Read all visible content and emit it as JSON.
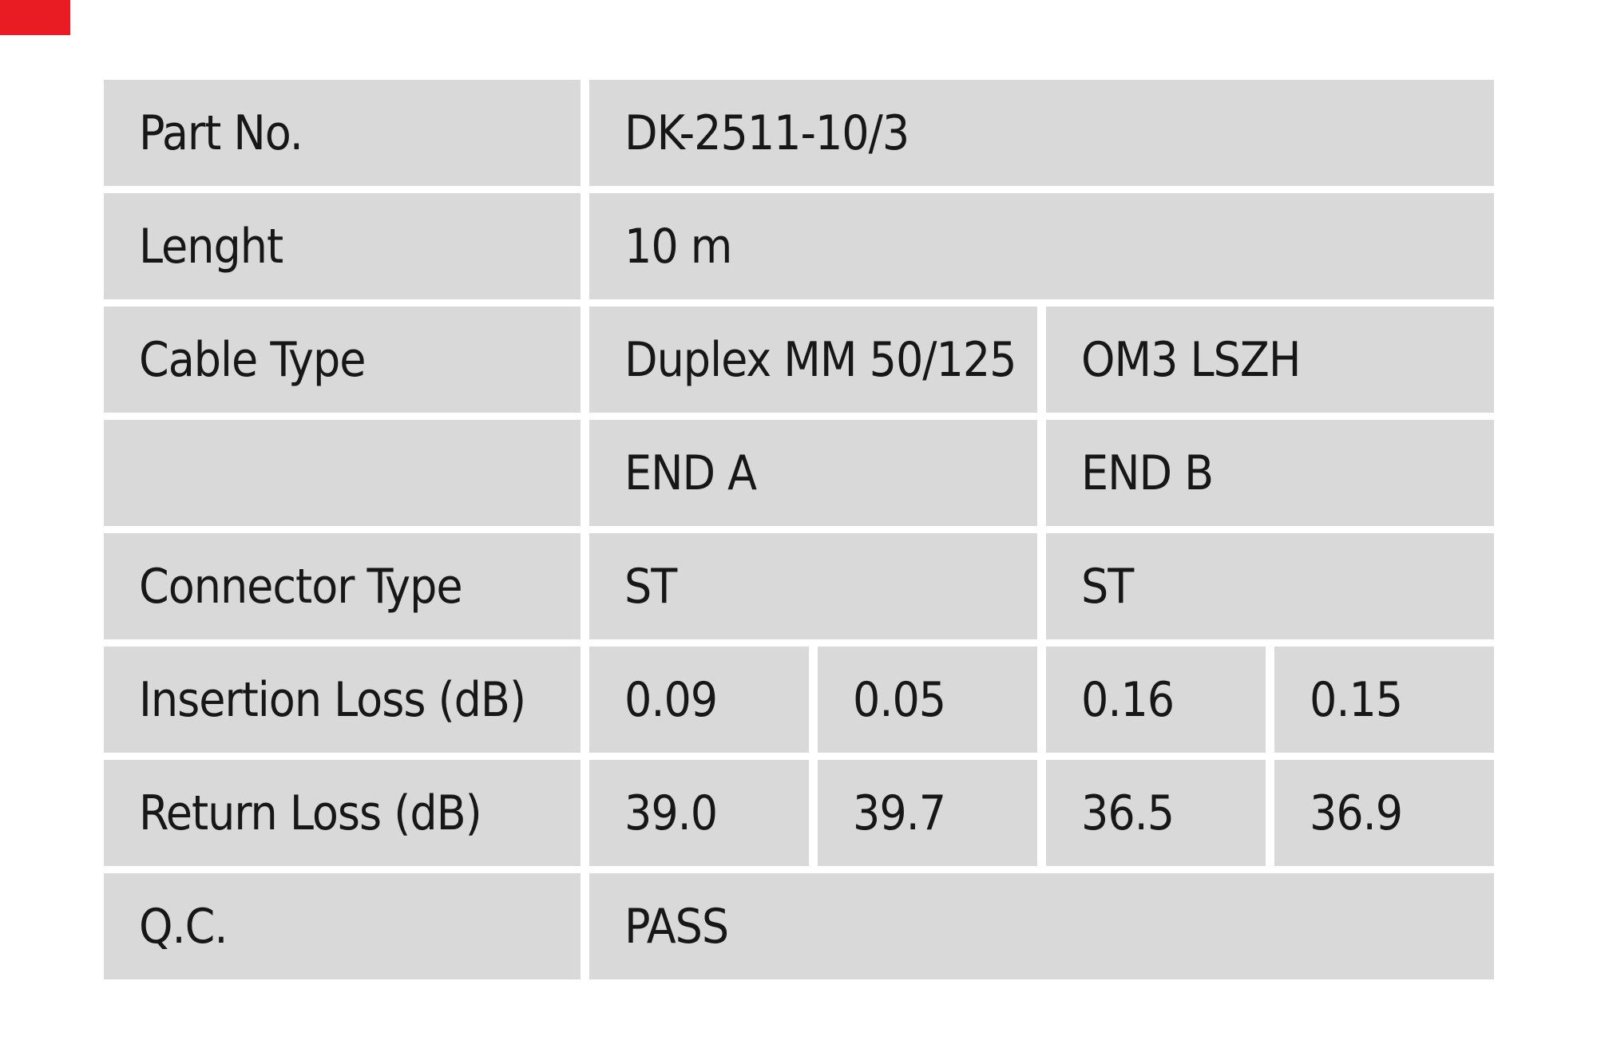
{
  "page": {
    "background_color": "#ffffff",
    "corner_mark_color": "#e81c22",
    "cell_background_color": "#d9d9d9",
    "text_color": "#171717"
  },
  "table": {
    "rows": [
      {
        "label": "Part No.",
        "cells": [
          {
            "text": "DK-2511-10/3",
            "span": 4
          }
        ]
      },
      {
        "label": "Lenght",
        "cells": [
          {
            "text": "10 m",
            "span": 4
          }
        ]
      },
      {
        "label": "Cable Type",
        "cells": [
          {
            "text": "Duplex MM 50/125",
            "span": 2
          },
          {
            "text": "OM3 LSZH",
            "span": 2
          }
        ]
      },
      {
        "label": "",
        "cells": [
          {
            "text": "END A",
            "span": 2
          },
          {
            "text": "END B",
            "span": 2
          }
        ]
      },
      {
        "label": "Connector Type",
        "cells": [
          {
            "text": "ST",
            "span": 2
          },
          {
            "text": "ST",
            "span": 2
          }
        ]
      },
      {
        "label": "Insertion Loss (dB)",
        "cells": [
          {
            "text": "0.09",
            "span": 1
          },
          {
            "text": "0.05",
            "span": 1
          },
          {
            "text": "0.16",
            "span": 1
          },
          {
            "text": "0.15",
            "span": 1
          }
        ]
      },
      {
        "label": "Return Loss (dB)",
        "cells": [
          {
            "text": "39.0",
            "span": 1
          },
          {
            "text": "39.7",
            "span": 1
          },
          {
            "text": "36.5",
            "span": 1
          },
          {
            "text": "36.9",
            "span": 1
          }
        ]
      },
      {
        "label": "Q.C.",
        "cells": [
          {
            "text": "PASS",
            "span": 4
          }
        ]
      }
    ]
  }
}
